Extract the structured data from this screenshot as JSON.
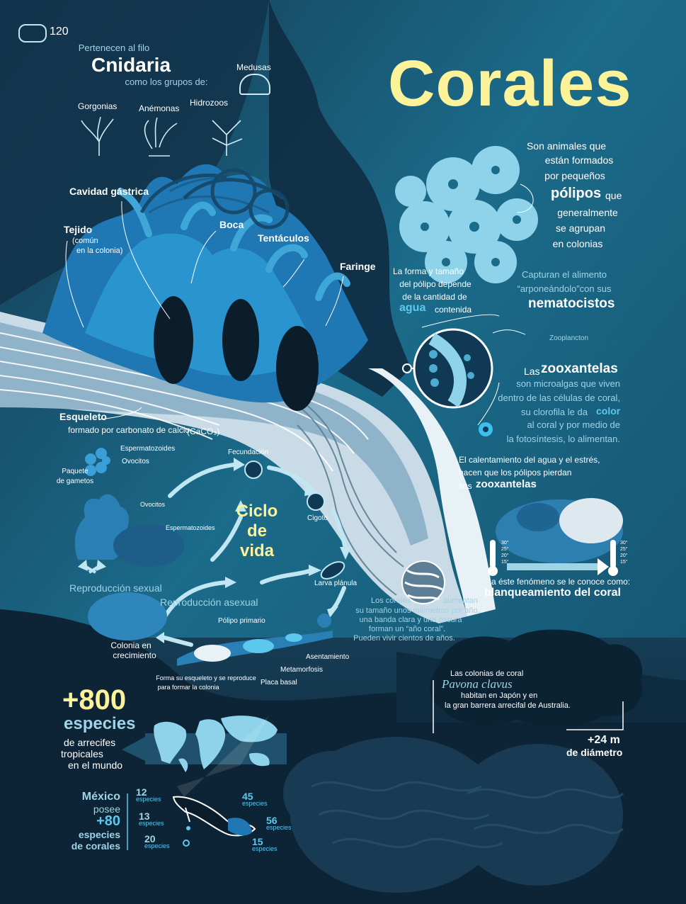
{
  "page_number": "120",
  "title": "Corales",
  "cnidaria": {
    "pre": "Pertenecen al filo",
    "name": "Cnidaria",
    "post": "como los grupos de:",
    "groups": [
      "Gorgonias",
      "Anémonas",
      "Hidrozoos",
      "Medusas"
    ]
  },
  "intro": {
    "l1": "Son animales que",
    "l2": "están formados",
    "l3": "por pequeños",
    "polipos": "pólipos",
    "que": "que",
    "l5": "generalmente",
    "l6": "se agrupan",
    "l7": "en colonias"
  },
  "anatomy": {
    "cavidad": "Cavidad gástrica",
    "tejido": "Tejido",
    "tejido_note_1": "(común",
    "tejido_note_2": "en la colonia)",
    "boca": "Boca",
    "tentaculos": "Tentáculos",
    "faringe": "Faringe",
    "esqueleto": "Esqueleto",
    "esqueleto_note": "formado por carbonato de calcio",
    "formula": "(CaCO₃)"
  },
  "polyp_shape": {
    "l1": "La forma y tamaño",
    "l2": "del pólipo depende",
    "l3": "de la cantidad de",
    "agua": "agua",
    "contenida": "contenida"
  },
  "nematocistos": {
    "l1": "Capturan el alimento",
    "l2": "“arponeándolo”con sus",
    "word": "nematocistos",
    "zoo": "Zooplancton"
  },
  "zooxantelas": {
    "las": "Las",
    "word": "zooxantelas",
    "l2": "son microalgas que viven",
    "l3": "dentro de las células de coral,",
    "l4a": "su clorofila le da",
    "color": "color",
    "l5": "al coral y por medio de",
    "l6": "la fotosíntesis, lo alimentan."
  },
  "bleaching": {
    "l1": "El calentamiento del agua y el estrés,",
    "l2": "hacen que los pólipos pierdan",
    "l3a": "sus",
    "l3b": "zooxantelas",
    "l4": "a éste fenómeno se le conoce como:",
    "term": "blanqueamiento del coral",
    "temps_left": [
      "30°",
      "25°",
      "20°",
      "15°"
    ],
    "temps_right": [
      "30°",
      "25°",
      "20°",
      "15°"
    ]
  },
  "growth": {
    "l1a": "Los corales",
    "l1b": "aumentan",
    "l2": "su tamaño unos milímetros por año,",
    "l3": "una banda clara y una oscura",
    "l4": "forman un “año coral”.",
    "l5": "Pueden vivir cientos de años."
  },
  "lifecycle": {
    "title_1": "Ciclo",
    "title_2": "de",
    "title_3": "vida",
    "espermatozoides": "Espermatozoides",
    "ovocitos": "Ovocitos",
    "paquete_1": "Paquete",
    "paquete_2": "de gametos",
    "ovocitos2": "Ovocitos",
    "espermatozoides2": "Espermatozoides",
    "fecundacion": "Fecundación",
    "cigoto": "Cigoto",
    "larva": "Larva plánula",
    "asentamiento": "Asentamiento",
    "metamorfosis": "Metamorfosis",
    "placa": "Placa basal",
    "polipo_primario": "Pólipo primario",
    "forma_1": "Forma su esqueleto y se reproduce",
    "forma_2": "para formar la colonia",
    "colonia_1": "Colonia en",
    "colonia_2": "crecimiento",
    "rep_sexual": "Reproducción sexual",
    "rep_asexual": "Reproducción asexual"
  },
  "pavona": {
    "l1": "Las colonias de coral",
    "species": "Pavona clavus",
    "l3": "habitan en Japón y en",
    "l4": "la gran barrera arrecifal de Australia.",
    "size": "+24 m",
    "size_label": "de diámetro"
  },
  "species": {
    "count": "+800",
    "word": "especies",
    "l1": "de arrecifes",
    "l2": "tropicales",
    "l3": "en el mundo"
  },
  "mexico": {
    "l1": "México",
    "l2": "posee",
    "count": "+80",
    "l4": "especies",
    "l5": "de corales",
    "regions": [
      {
        "n": "12",
        "u": "especies"
      },
      {
        "n": "13",
        "u": "especies"
      },
      {
        "n": "20",
        "u": "especies"
      },
      {
        "n": "45",
        "u": "especies"
      },
      {
        "n": "56",
        "u": "especies"
      },
      {
        "n": "15",
        "u": "especies"
      }
    ]
  },
  "colors": {
    "background_dark": "#0e2a3e",
    "background_mid": "#175a78",
    "title_yellow": "#fbf29a",
    "accent_cyan": "#5cc8ee",
    "polyp_blue": "#1f78b4",
    "light_cyan": "#9fd3e6"
  }
}
